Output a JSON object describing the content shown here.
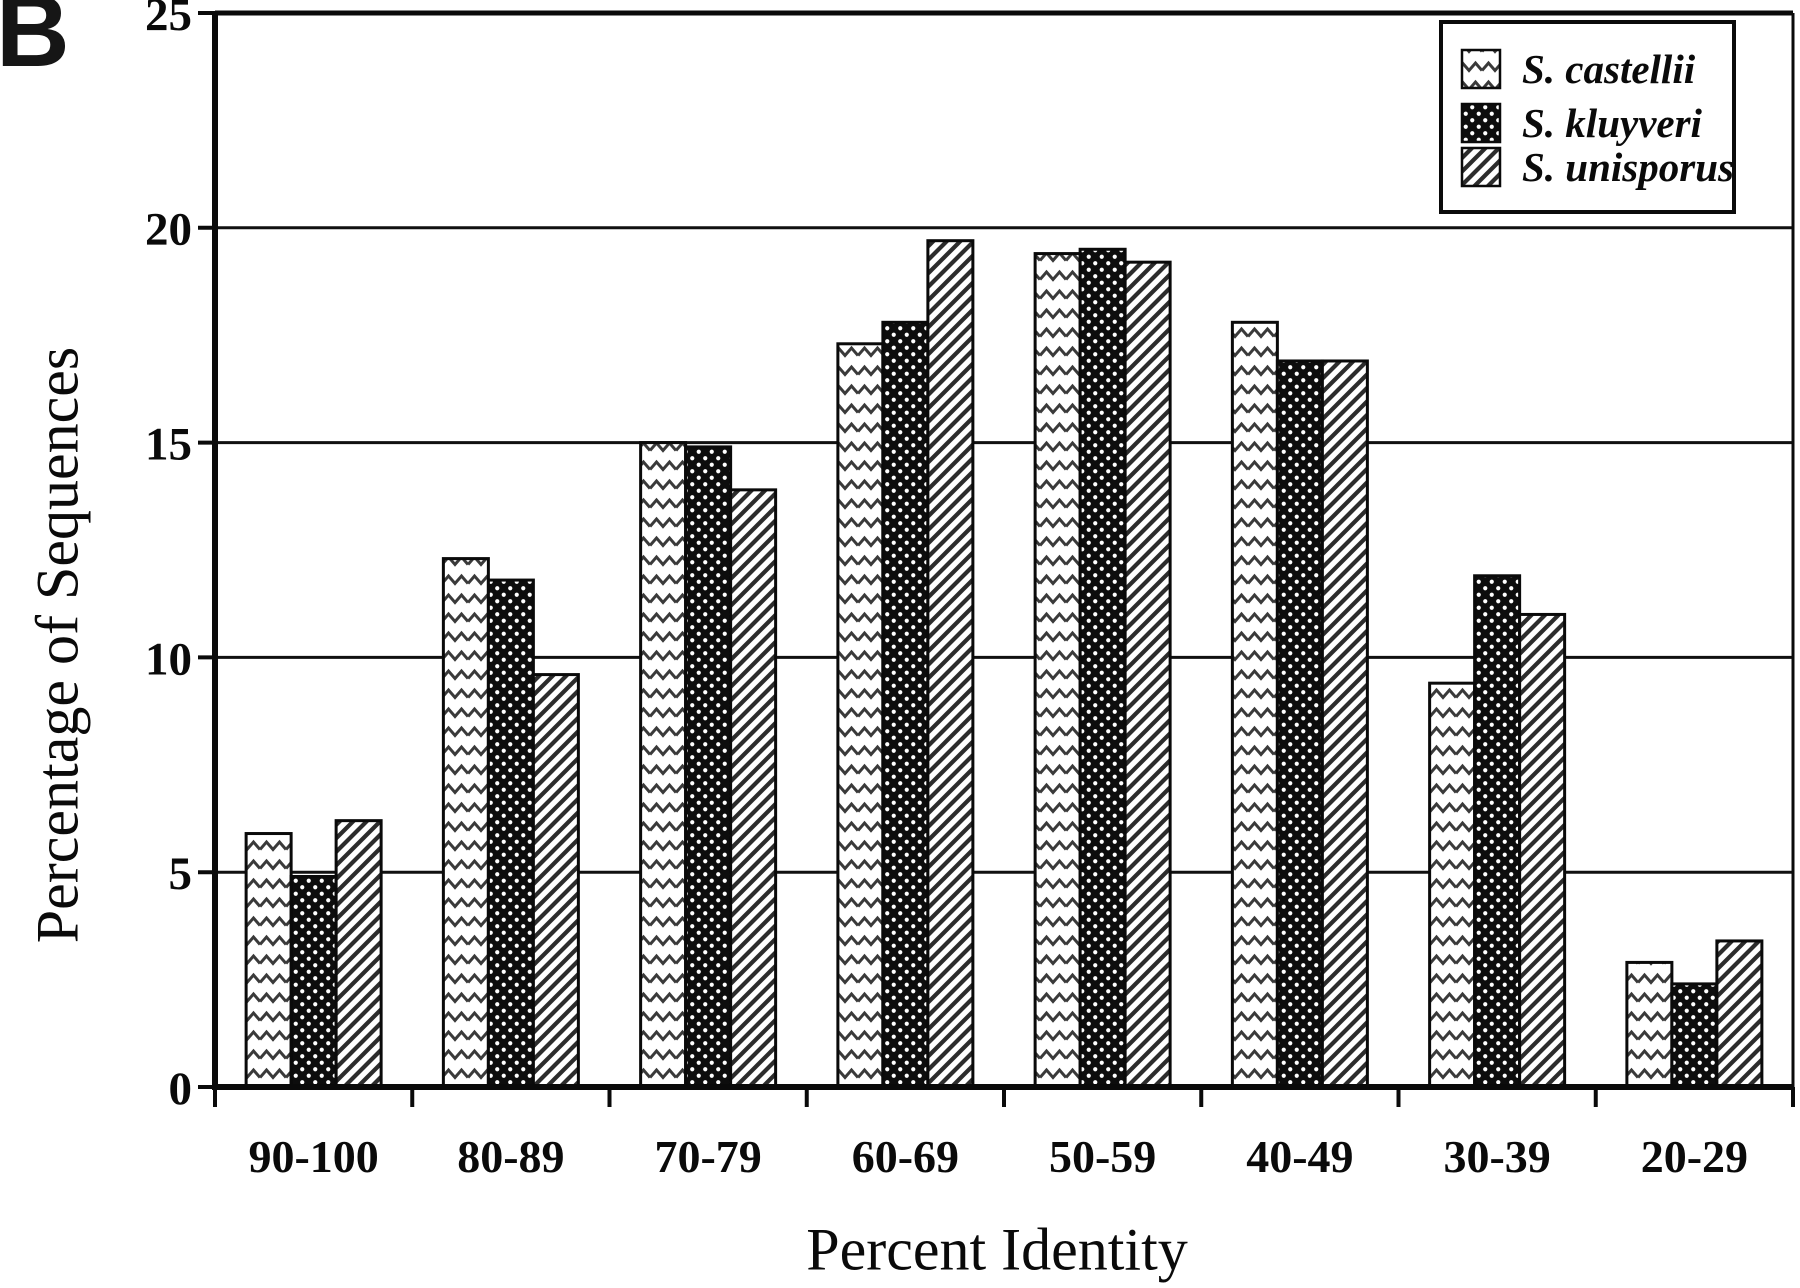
{
  "figure": {
    "panel_label": "B"
  },
  "chart_data": {
    "type": "bar",
    "title": "",
    "xlabel": "Percent Identity",
    "ylabel": "Percentage of Sequences",
    "categories": [
      "90-100",
      "80-89",
      "70-79",
      "60-69",
      "50-59",
      "40-49",
      "30-39",
      "20-29"
    ],
    "series": [
      {
        "name": "S. castellii",
        "pattern": "zigzag",
        "values": [
          5.9,
          12.3,
          15.0,
          17.3,
          19.4,
          17.8,
          9.4,
          2.9
        ]
      },
      {
        "name": "S. kluyveri",
        "pattern": "dots",
        "values": [
          4.9,
          11.8,
          14.9,
          17.8,
          19.5,
          16.9,
          11.9,
          2.4
        ]
      },
      {
        "name": "S. unisporus",
        "pattern": "diagonal",
        "values": [
          6.2,
          9.6,
          13.9,
          19.7,
          19.2,
          16.9,
          11.0,
          3.4
        ]
      }
    ],
    "ylim": [
      0,
      25
    ],
    "yticks": [
      0,
      5,
      10,
      15,
      20,
      25
    ],
    "grid": "horizontal",
    "legend_position": "top-right",
    "colors": {
      "ink": "#000000",
      "paper": "#ffffff"
    }
  }
}
